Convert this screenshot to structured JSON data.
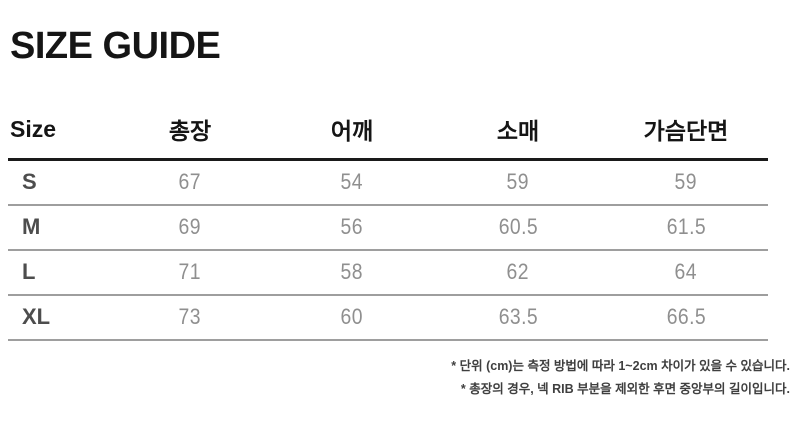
{
  "page": {
    "title": "SIZE GUIDE"
  },
  "table": {
    "columns": [
      "Size",
      "총장",
      "어깨",
      "소매",
      "가슴단면"
    ],
    "rows": [
      {
        "size": "S",
        "values": [
          "67",
          "54",
          "59",
          "59"
        ]
      },
      {
        "size": "M",
        "values": [
          "69",
          "56",
          "60.5",
          "61.5"
        ]
      },
      {
        "size": "L",
        "values": [
          "71",
          "58",
          "62",
          "64"
        ]
      },
      {
        "size": "XL",
        "values": [
          "73",
          "60",
          "63.5",
          "66.5"
        ]
      }
    ]
  },
  "notes": [
    "* 단위 (cm)는 측정 방법에 따라 1~2cm 차이가 있을 수 있습니다.",
    "* 총장의 경우, 넥 RIB 부분을 제외한 후면 중앙부의 길이입니다."
  ],
  "colors": {
    "title_text": "#151515",
    "header_text": "#151515",
    "header_rule": "#1a1a1a",
    "row_rule": "#9e9e9e",
    "size_label_text": "#4d4d4d",
    "value_text": "#8f8f8f",
    "note_text": "#3f3f3f",
    "background": "#ffffff"
  }
}
